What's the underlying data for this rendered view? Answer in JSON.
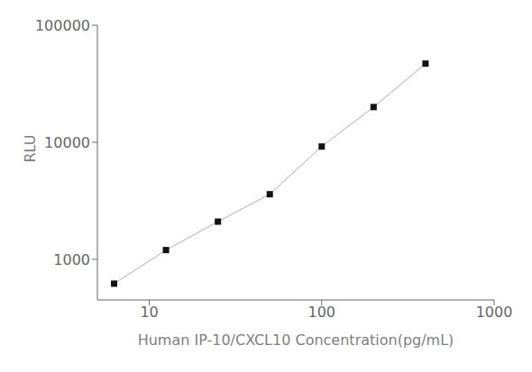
{
  "chart_data": {
    "type": "line",
    "x": [
      6.25,
      12.5,
      25,
      50,
      100,
      200,
      400
    ],
    "values": [
      620,
      1200,
      2100,
      3600,
      9200,
      20000,
      47000
    ],
    "color": "#111111",
    "marker": "square",
    "xlabel": "Human  IP-10/CXCL10 Concentration(pg/mL)",
    "ylabel": "RLU",
    "xlim": [
      5,
      1000
    ],
    "ylim": [
      450,
      100000
    ],
    "xticks": [
      10,
      100,
      1000
    ],
    "yticks": [
      1000,
      10000,
      100000
    ],
    "log": true,
    "grid": false
  }
}
